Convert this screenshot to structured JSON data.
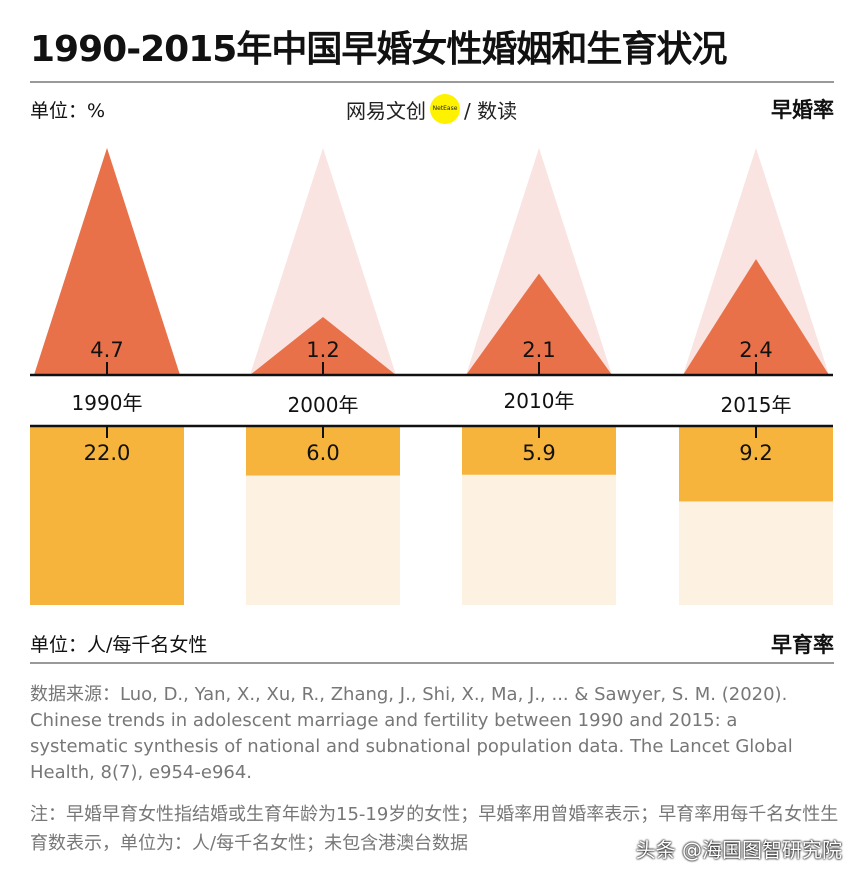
{
  "title": "1990-2015年中国早婚女性婚姻和生育状况",
  "logo": {
    "text_left": "网易文创",
    "badge": "NetEase",
    "text_right": "/ 数读"
  },
  "top": {
    "unit": "单位：%",
    "series_label": "早婚率"
  },
  "bottom": {
    "unit": "单位：人/每千名女性",
    "series_label": "早育率"
  },
  "colors": {
    "marriage": "#E8714A",
    "marriage_bg": "#F9E4E1",
    "birth": "#F6B43C",
    "birth_bg": "#FDF1E2",
    "axis": "#111111"
  },
  "chart_data": {
    "type": "bar",
    "categories": [
      "1990年",
      "2000年",
      "2010年",
      "2015年"
    ],
    "series": [
      {
        "name": "早婚率",
        "unit": "%",
        "shape": "triangle",
        "values": [
          4.7,
          1.2,
          2.1,
          2.4
        ],
        "labels": [
          "4.7",
          "1.2",
          "2.1",
          "2.4"
        ],
        "max": 4.7
      },
      {
        "name": "早育率",
        "unit": "人/每千名女性",
        "shape": "bar",
        "values": [
          22.0,
          6.0,
          5.9,
          9.2
        ],
        "labels": [
          "22.0",
          "6.0",
          "5.9",
          "9.2"
        ],
        "max": 22.0
      }
    ]
  },
  "source": "数据来源：Luo, D., Yan, X., Xu, R., Zhang, J., Shi, X., Ma, J., ... & Sawyer, S. M. (2020). Chinese trends in adolescent marriage and fertility between 1990 and 2015: a systematic synthesis of national and subnational population data. The Lancet Global Health, 8(7), e954-e964.",
  "note": "注：早婚早育女性指结婚或生育年龄为15-19岁的女性；早婚率用曾婚率表示；早育率用每千名女性生育数表示，单位为：人/每千名女性；未包含港澳台数据",
  "watermark": "头条 @海国图智研究院"
}
